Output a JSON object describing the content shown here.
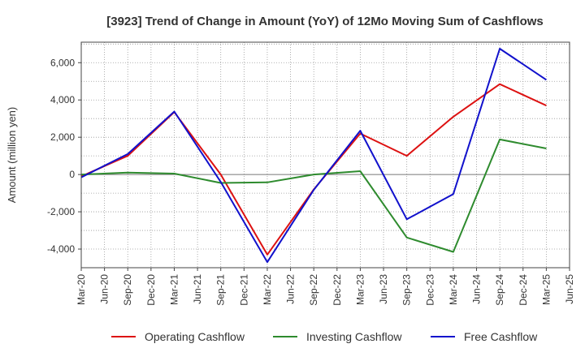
{
  "chart_data": {
    "type": "line",
    "title": "[3923]  Trend of Change in Amount (YoY) of 12Mo Moving Sum of Cashflows",
    "xlabel": "",
    "ylabel": "Amount (million yen)",
    "categories": [
      "Mar-20",
      "Jun-20",
      "Sep-20",
      "Dec-20",
      "Mar-21",
      "Jun-21",
      "Sep-21",
      "Dec-21",
      "Mar-22",
      "Jun-22",
      "Sep-22",
      "Dec-22",
      "Mar-23",
      "Jun-23",
      "Sep-23",
      "Dec-23",
      "Mar-24",
      "Jun-24",
      "Sep-24",
      "Dec-24",
      "Mar-25",
      "Jun-25"
    ],
    "ylim": [
      -5000,
      7100
    ],
    "yticks": [
      -4000,
      -2000,
      0,
      2000,
      4000,
      6000
    ],
    "ytick_labels": [
      "-4,000",
      "-2,000",
      "0",
      "2,000",
      "4,000",
      "6,000"
    ],
    "grid": true,
    "legend_position": "bottom",
    "series": [
      {
        "name": "Operating Cashflow",
        "color": "#dd1111",
        "values": [
          -100,
          null,
          1000,
          null,
          3350,
          null,
          0,
          null,
          -4300,
          null,
          -800,
          null,
          2200,
          null,
          1000,
          null,
          3100,
          null,
          4850,
          null,
          3700,
          null
        ]
      },
      {
        "name": "Investing Cashflow",
        "color": "#2e8b2e",
        "values": [
          0,
          null,
          100,
          null,
          50,
          null,
          -450,
          null,
          -420,
          null,
          0,
          null,
          180,
          null,
          -3380,
          null,
          -4150,
          null,
          1880,
          null,
          1400,
          null
        ]
      },
      {
        "name": "Free Cashflow",
        "color": "#1111cc",
        "values": [
          -150,
          null,
          1100,
          null,
          3380,
          null,
          -400,
          null,
          -4700,
          null,
          -820,
          null,
          2350,
          null,
          -2400,
          null,
          -1050,
          null,
          6750,
          null,
          5080,
          null
        ]
      }
    ]
  }
}
